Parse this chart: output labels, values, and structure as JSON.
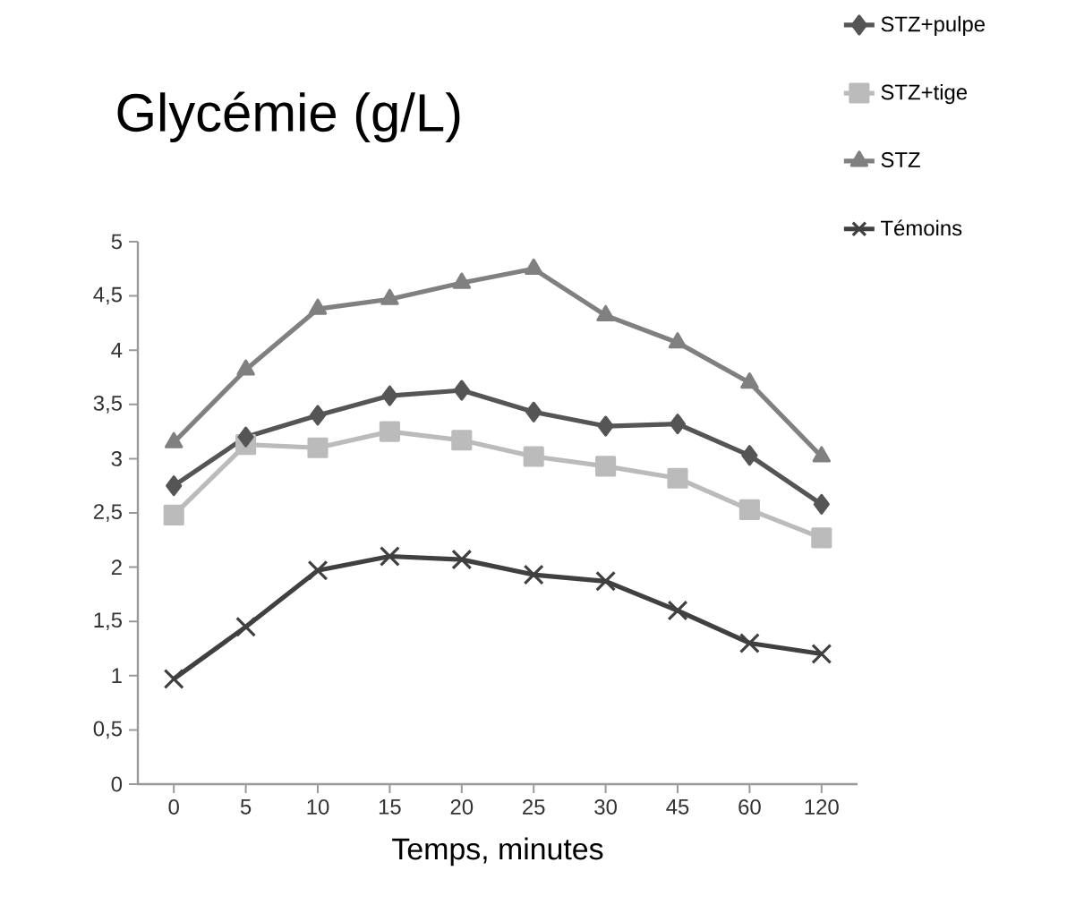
{
  "chart_data": {
    "type": "line",
    "title": "Glycémie (g/L)",
    "xlabel": "Temps, minutes",
    "categories": [
      "0",
      "5",
      "10",
      "15",
      "20",
      "25",
      "30",
      "45",
      "60",
      "120"
    ],
    "series": [
      {
        "name": "STZ+pulpe",
        "color": "#555555",
        "marker": "diamond",
        "values": [
          2.75,
          3.2,
          3.4,
          3.58,
          3.63,
          3.43,
          3.3,
          3.32,
          3.03,
          2.58
        ]
      },
      {
        "name": "STZ+tige",
        "color": "#bbbbbb",
        "marker": "square",
        "values": [
          2.48,
          3.13,
          3.1,
          3.25,
          3.17,
          3.02,
          2.93,
          2.82,
          2.53,
          2.27
        ]
      },
      {
        "name": "STZ",
        "color": "#808080",
        "marker": "triangle",
        "values": [
          3.15,
          3.82,
          4.38,
          4.47,
          4.62,
          4.75,
          4.32,
          4.07,
          3.7,
          3.02
        ]
      },
      {
        "name": "Témoins",
        "color": "#404040",
        "marker": "cross",
        "values": [
          0.97,
          1.45,
          1.97,
          2.1,
          2.07,
          1.93,
          1.87,
          1.6,
          1.3,
          1.2
        ]
      }
    ],
    "ylim": [
      0,
      5
    ],
    "yticks": [
      0,
      {
        "value": 0.5,
        "label": "0,5"
      },
      1,
      {
        "value": 1.5,
        "label": "1,5"
      },
      2,
      {
        "value": 2.5,
        "label": "2,5"
      },
      3,
      {
        "value": 3.5,
        "label": "3,5"
      },
      4,
      {
        "value": 4.5,
        "label": "4,5"
      },
      5
    ],
    "grid": false,
    "legend": "top right",
    "line_style": "solid"
  }
}
